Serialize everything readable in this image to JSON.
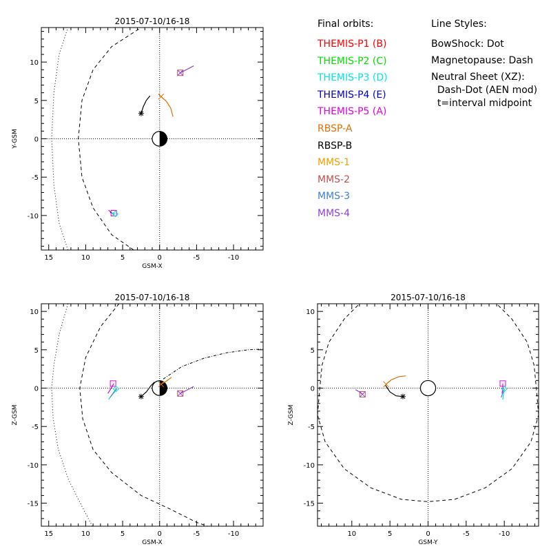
{
  "colors": {
    "themis_p1": "#ff0000",
    "themis_p2": "#00e000",
    "themis_p3": "#00e5e5",
    "themis_p4": "#0000c8",
    "themis_p5": "#e000e0",
    "rbsp_a": "#e07000",
    "rbsp_b": "#000000",
    "mms_1": "#f0a000",
    "mms_2": "#c05050",
    "mms_3": "#4080d0",
    "mms_4": "#9040d0"
  },
  "legend": {
    "final_orbits_title": "Final orbits:",
    "line_styles_title": "Line Styles:",
    "orbits": [
      {
        "label": "THEMIS-P1 (B)",
        "color": "#ff0000"
      },
      {
        "label": "THEMIS-P2 (C)",
        "color": "#00e000"
      },
      {
        "label": "THEMIS-P3 (D)",
        "color": "#00e5e5"
      },
      {
        "label": "THEMIS-P4 (E)",
        "color": "#0000c8"
      },
      {
        "label": "THEMIS-P5 (A)",
        "color": "#e000e0"
      },
      {
        "label": "RBSP-A",
        "color": "#e07000"
      },
      {
        "label": "RBSP-B",
        "color": "#000000"
      },
      {
        "label": "MMS-1",
        "color": "#f0a000"
      },
      {
        "label": "MMS-2",
        "color": "#c05050"
      },
      {
        "label": "MMS-3",
        "color": "#4080d0"
      },
      {
        "label": "MMS-4",
        "color": "#9040d0"
      }
    ],
    "styles": [
      "BowShock: Dot",
      "Magnetopause: Dash",
      "Neutral Sheet (XZ):",
      "  Dash-Dot (AEN mod)",
      "  t=interval midpoint"
    ]
  },
  "chart_data": [
    {
      "type": "scatter",
      "title": "2015-07-10/16-18",
      "xlabel": "GSM-X",
      "ylabel": "Y-GSM",
      "xlim": [
        16,
        -14
      ],
      "ylim": [
        -14.5,
        14.5
      ],
      "xticks": [
        15,
        10,
        5,
        0,
        -5,
        -10
      ],
      "yticks": [
        -10,
        -5,
        0,
        5,
        10
      ],
      "grid": false,
      "earth": {
        "x": 0,
        "y": 0,
        "radius": 1
      },
      "bowshock": {
        "style": "dot",
        "points": [
          [
            12.4,
            -14.5
          ],
          [
            13.6,
            -11
          ],
          [
            14.3,
            -6
          ],
          [
            14.6,
            0
          ],
          [
            14.3,
            6
          ],
          [
            13.6,
            11
          ],
          [
            12.4,
            14.5
          ]
        ]
      },
      "magnetopause": {
        "style": "dash",
        "points": [
          [
            3.5,
            -14.5
          ],
          [
            6.5,
            -12.5
          ],
          [
            9,
            -9
          ],
          [
            10.5,
            -5
          ],
          [
            11,
            0
          ],
          [
            10.5,
            5
          ],
          [
            9,
            9
          ],
          [
            6.5,
            12
          ],
          [
            2.5,
            14.5
          ]
        ]
      },
      "tracks": [
        {
          "spacecraft": "THEMIS-P5 (A)",
          "color": "#e000e0",
          "points": [
            [
              6.9,
              -9.3
            ],
            [
              6.2,
              -9.9
            ]
          ]
        },
        {
          "spacecraft": "THEMIS-P4 (E)",
          "color": "#0000c8",
          "points": [
            [
              6.7,
              -9.6
            ],
            [
              6.1,
              -9.8
            ]
          ]
        },
        {
          "spacecraft": "THEMIS-P3 (D)",
          "color": "#00e5e5",
          "points": [
            [
              6.5,
              -9.7
            ],
            [
              6.0,
              -9.8
            ]
          ]
        },
        {
          "spacecraft": "RBSP-B",
          "color": "#000000",
          "points": [
            [
              2.5,
              3.3
            ],
            [
              2.2,
              4.2
            ],
            [
              1.8,
              5.0
            ],
            [
              1.3,
              5.6
            ]
          ]
        },
        {
          "spacecraft": "RBSP-A",
          "color": "#e07000",
          "points": [
            [
              -1.8,
              2.9
            ],
            [
              -1.5,
              4.0
            ],
            [
              -0.9,
              4.9
            ],
            [
              -0.2,
              5.5
            ]
          ]
        },
        {
          "spacecraft": "MMS-4",
          "color": "#9040d0",
          "points": [
            [
              -2.8,
              8.6
            ],
            [
              -3.6,
              9.0
            ],
            [
              -4.6,
              9.5
            ]
          ]
        }
      ],
      "end_markers": [
        {
          "spacecraft": "THEMIS-P5 (A)",
          "marker": "square",
          "color": "#e000e0",
          "x": 6.2,
          "y": -9.7
        },
        {
          "spacecraft": "THEMIS-P3 (D)",
          "marker": "diamond",
          "color": "#00e5e5",
          "x": 6.0,
          "y": -9.8
        },
        {
          "spacecraft": "RBSP-B",
          "marker": "asterisk",
          "color": "#000000",
          "x": 2.5,
          "y": 3.3
        },
        {
          "spacecraft": "RBSP-A",
          "marker": "x",
          "color": "#e07000",
          "x": -0.2,
          "y": 5.5
        },
        {
          "spacecraft": "MMS-2",
          "marker": "square",
          "color": "#c05050",
          "x": -2.8,
          "y": 8.6
        },
        {
          "spacecraft": "MMS-4",
          "marker": "x",
          "color": "#9040d0",
          "x": -2.8,
          "y": 8.6
        }
      ]
    },
    {
      "type": "scatter",
      "title": "2015-07-10/16-18",
      "xlabel": "GSM-X",
      "ylabel": "Z-GSM",
      "xlim": [
        16,
        -14
      ],
      "ylim": [
        -18,
        11
      ],
      "xticks": [
        15,
        10,
        5,
        0,
        -5,
        -10
      ],
      "yticks": [
        10,
        5,
        0,
        -5,
        -10,
        -15
      ],
      "grid": false,
      "earth": {
        "x": 0,
        "y": 0,
        "radius": 1
      },
      "bowshock": {
        "style": "dot",
        "points": [
          [
            12.4,
            11
          ],
          [
            13.6,
            7
          ],
          [
            14.3,
            3
          ],
          [
            14.6,
            0
          ],
          [
            14.4,
            -4
          ],
          [
            13.7,
            -8
          ],
          [
            12.3,
            -12
          ],
          [
            10.2,
            -16
          ],
          [
            9.1,
            -18
          ]
        ]
      },
      "magnetopause": {
        "style": "dash",
        "points": [
          [
            5.5,
            11
          ],
          [
            8,
            8
          ],
          [
            10,
            4
          ],
          [
            10.8,
            0
          ],
          [
            10.4,
            -4
          ],
          [
            9,
            -8
          ],
          [
            6.5,
            -11
          ],
          [
            2.5,
            -14
          ],
          [
            -1.5,
            -15.8
          ],
          [
            -5,
            -17.5
          ],
          [
            -6.5,
            -18
          ]
        ]
      },
      "neutral_sheet": {
        "style": "dash-dot",
        "points": [
          [
            -0.5,
            1.2
          ],
          [
            -3,
            2.8
          ],
          [
            -6,
            3.9
          ],
          [
            -9,
            4.6
          ],
          [
            -12,
            5.0
          ],
          [
            -14,
            5.1
          ]
        ]
      },
      "tracks": [
        {
          "spacecraft": "THEMIS-P5 (A)",
          "color": "#e000e0",
          "points": [
            [
              7.0,
              -0.7
            ],
            [
              6.6,
              -0.1
            ],
            [
              6.2,
              0.6
            ]
          ]
        },
        {
          "spacecraft": "THEMIS-P3 (D)",
          "color": "#00e5e5",
          "points": [
            [
              6.9,
              -1.5
            ],
            [
              6.4,
              -0.8
            ],
            [
              5.9,
              -0.1
            ]
          ]
        },
        {
          "spacecraft": "THEMIS-P4 (E)",
          "color": "#4080d0",
          "points": [
            [
              6.7,
              -1.2
            ],
            [
              6.2,
              -0.6
            ],
            [
              5.8,
              -0.1
            ]
          ]
        },
        {
          "spacecraft": "RBSP-B",
          "color": "#000000",
          "points": [
            [
              2.5,
              -1.1
            ],
            [
              1.8,
              -0.5
            ],
            [
              1.2,
              0.3
            ],
            [
              0.7,
              0.8
            ]
          ]
        },
        {
          "spacecraft": "RBSP-A",
          "color": "#e07000",
          "points": [
            [
              -0.2,
              0.5
            ],
            [
              -0.9,
              0.9
            ],
            [
              -1.6,
              1.4
            ]
          ]
        },
        {
          "spacecraft": "MMS-4",
          "color": "#9040d0",
          "points": [
            [
              -2.8,
              -0.7
            ],
            [
              -3.6,
              -0.3
            ],
            [
              -4.6,
              0.2
            ]
          ]
        }
      ],
      "end_markers": [
        {
          "spacecraft": "THEMIS-P5 (A)",
          "marker": "square",
          "color": "#e000e0",
          "x": 6.3,
          "y": 0.6
        },
        {
          "spacecraft": "THEMIS-P3 (D)",
          "marker": "diamond",
          "color": "#00e5e5",
          "x": 5.9,
          "y": -0.1
        },
        {
          "spacecraft": "RBSP-B",
          "marker": "asterisk",
          "color": "#000000",
          "x": 2.5,
          "y": -1.1
        },
        {
          "spacecraft": "RBSP-A",
          "marker": "x",
          "color": "#e07000",
          "x": -0.2,
          "y": 0.5
        },
        {
          "spacecraft": "MMS-2",
          "marker": "square",
          "color": "#c05050",
          "x": -2.8,
          "y": -0.7
        },
        {
          "spacecraft": "MMS-4",
          "marker": "x",
          "color": "#9040d0",
          "x": -2.8,
          "y": -0.7
        }
      ]
    },
    {
      "type": "scatter",
      "title": "2015-07-10/16-18",
      "xlabel": "GSM-Y",
      "ylabel": "Z-GSM",
      "xlim": [
        14.5,
        -14.5
      ],
      "ylim": [
        -18,
        11
      ],
      "xticks": [
        10,
        5,
        0,
        -5,
        -10
      ],
      "yticks": [
        10,
        5,
        0,
        -5,
        -10,
        -15
      ],
      "grid": false,
      "earth": {
        "x": 0,
        "y": 0,
        "radius": 1
      },
      "magnetopause": {
        "style": "dash",
        "points": [
          [
            14.5,
            -3.5
          ],
          [
            14.2,
            0
          ],
          [
            13.9,
            3
          ],
          [
            13,
            6
          ],
          [
            11,
            9
          ],
          [
            9,
            11
          ]
        ]
      },
      "magnetopause_2": {
        "style": "dash",
        "points": [
          [
            14.5,
            -3.5
          ],
          [
            13.5,
            -7
          ],
          [
            11,
            -10.5
          ],
          [
            7.5,
            -13
          ],
          [
            3.5,
            -14.5
          ],
          [
            0,
            -14.8
          ],
          [
            -3.5,
            -14.5
          ],
          [
            -7.5,
            -13
          ],
          [
            -11,
            -10.5
          ],
          [
            -13.5,
            -7
          ],
          [
            -14.5,
            -3.5
          ]
        ]
      },
      "magnetopause_3": {
        "style": "dash",
        "points": [
          [
            -14.5,
            -3.5
          ],
          [
            -14.2,
            0
          ],
          [
            -13.9,
            3
          ],
          [
            -13,
            6
          ],
          [
            -11,
            9
          ],
          [
            -9,
            11
          ]
        ]
      },
      "tracks": [
        {
          "spacecraft": "THEMIS-P3 (D)",
          "color": "#00e5e5",
          "points": [
            [
              -9.8,
              -1.5
            ],
            [
              -9.9,
              -0.8
            ],
            [
              -10.0,
              -0.1
            ]
          ]
        },
        {
          "spacecraft": "THEMIS-P4 (E)",
          "color": "#4080d0",
          "points": [
            [
              -9.6,
              -1.2
            ],
            [
              -9.8,
              -0.6
            ],
            [
              -10.0,
              -0.1
            ]
          ]
        },
        {
          "spacecraft": "THEMIS-P5 (A)",
          "color": "#e000e0",
          "points": [
            [
              -9.7,
              -0.7
            ],
            [
              -9.8,
              0.0
            ],
            [
              -9.8,
              0.6
            ]
          ]
        },
        {
          "spacecraft": "RBSP-B",
          "color": "#000000",
          "points": [
            [
              5.6,
              0.4
            ],
            [
              5.0,
              -0.5
            ],
            [
              4.2,
              -1.0
            ],
            [
              3.3,
              -1.1
            ]
          ]
        },
        {
          "spacecraft": "RBSP-A",
          "color": "#e07000",
          "points": [
            [
              5.5,
              0.5
            ],
            [
              4.8,
              1.1
            ],
            [
              3.8,
              1.5
            ],
            [
              2.9,
              1.6
            ]
          ]
        },
        {
          "spacecraft": "MMS-4",
          "color": "#9040d0",
          "points": [
            [
              9.5,
              -0.2
            ],
            [
              9.0,
              -0.5
            ],
            [
              8.6,
              -0.8
            ]
          ]
        }
      ],
      "end_markers": [
        {
          "spacecraft": "THEMIS-P5 (A)",
          "marker": "square",
          "color": "#e000e0",
          "x": -9.8,
          "y": 0.6
        },
        {
          "spacecraft": "THEMIS-P3 (D)",
          "marker": "diamond",
          "color": "#00e5e5",
          "x": -10.0,
          "y": -0.1
        },
        {
          "spacecraft": "RBSP-B",
          "marker": "asterisk",
          "color": "#000000",
          "x": 3.3,
          "y": -1.1
        },
        {
          "spacecraft": "RBSP-A",
          "marker": "x",
          "color": "#e07000",
          "x": 5.5,
          "y": 0.5
        },
        {
          "spacecraft": "MMS-2",
          "marker": "square",
          "color": "#c05050",
          "x": 8.6,
          "y": -0.8
        },
        {
          "spacecraft": "MMS-4",
          "marker": "x",
          "color": "#9040d0",
          "x": 8.6,
          "y": -0.8
        }
      ]
    }
  ]
}
